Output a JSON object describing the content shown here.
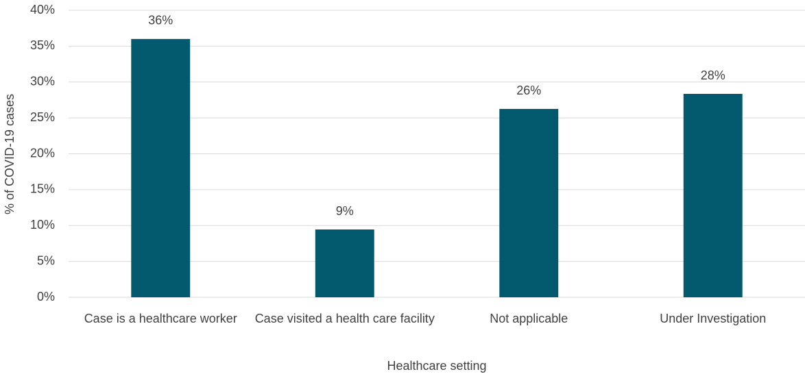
{
  "chart_data": {
    "type": "bar",
    "x_label": "Healthcare setting",
    "y_label": "% of COVID-19 cases",
    "categories": [
      "Case is a healthcare worker",
      "Case visited a health care facility",
      "Not applicable",
      "Under Investigation"
    ],
    "values": [
      36,
      9.45,
      26.25,
      28.35
    ],
    "value_labels": [
      "36%",
      "9%",
      "26%",
      "28%"
    ],
    "color": "#03596e",
    "ylim": [
      0,
      40
    ],
    "yticks": [
      {
        "value": 0,
        "label": "0%"
      },
      {
        "value": 5,
        "label": "5%"
      },
      {
        "value": 10,
        "label": "10%"
      },
      {
        "value": 15,
        "label": "15%"
      },
      {
        "value": 20,
        "label": "20%"
      },
      {
        "value": 25,
        "label": "25%"
      },
      {
        "value": 30,
        "label": "30%"
      },
      {
        "value": 35,
        "label": "35%"
      },
      {
        "value": 40,
        "label": "40%"
      }
    ],
    "grid": true
  }
}
